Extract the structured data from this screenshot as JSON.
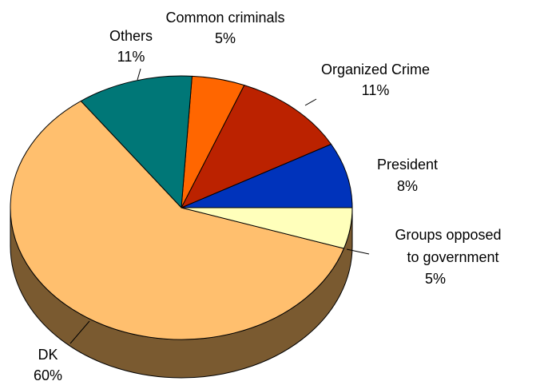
{
  "chart_data": {
    "type": "pie",
    "style": "3d",
    "start": "3 o'clock, counter-clockwise",
    "slices": [
      {
        "label": "President",
        "value": 8,
        "value_label": "8%",
        "color": "#0033BB"
      },
      {
        "label": "Organized Crime",
        "value": 11,
        "value_label": "11%",
        "color": "#BB2200"
      },
      {
        "label": "Common criminals",
        "value": 5,
        "value_label": "5%",
        "color": "#FF6600"
      },
      {
        "label": "Others",
        "value": 11,
        "value_label": "11%",
        "color": "#007777"
      },
      {
        "label": "DK",
        "value": 60,
        "value_label": "60%",
        "color": "#FFBF6E"
      },
      {
        "label": "Groups opposed to government",
        "label_lines": [
          "Groups opposed",
          "to government"
        ],
        "value": 5,
        "value_label": "5%",
        "color": "#FFFFBB"
      }
    ],
    "side_color": "#7A5A30",
    "outline_color": "#000000"
  }
}
